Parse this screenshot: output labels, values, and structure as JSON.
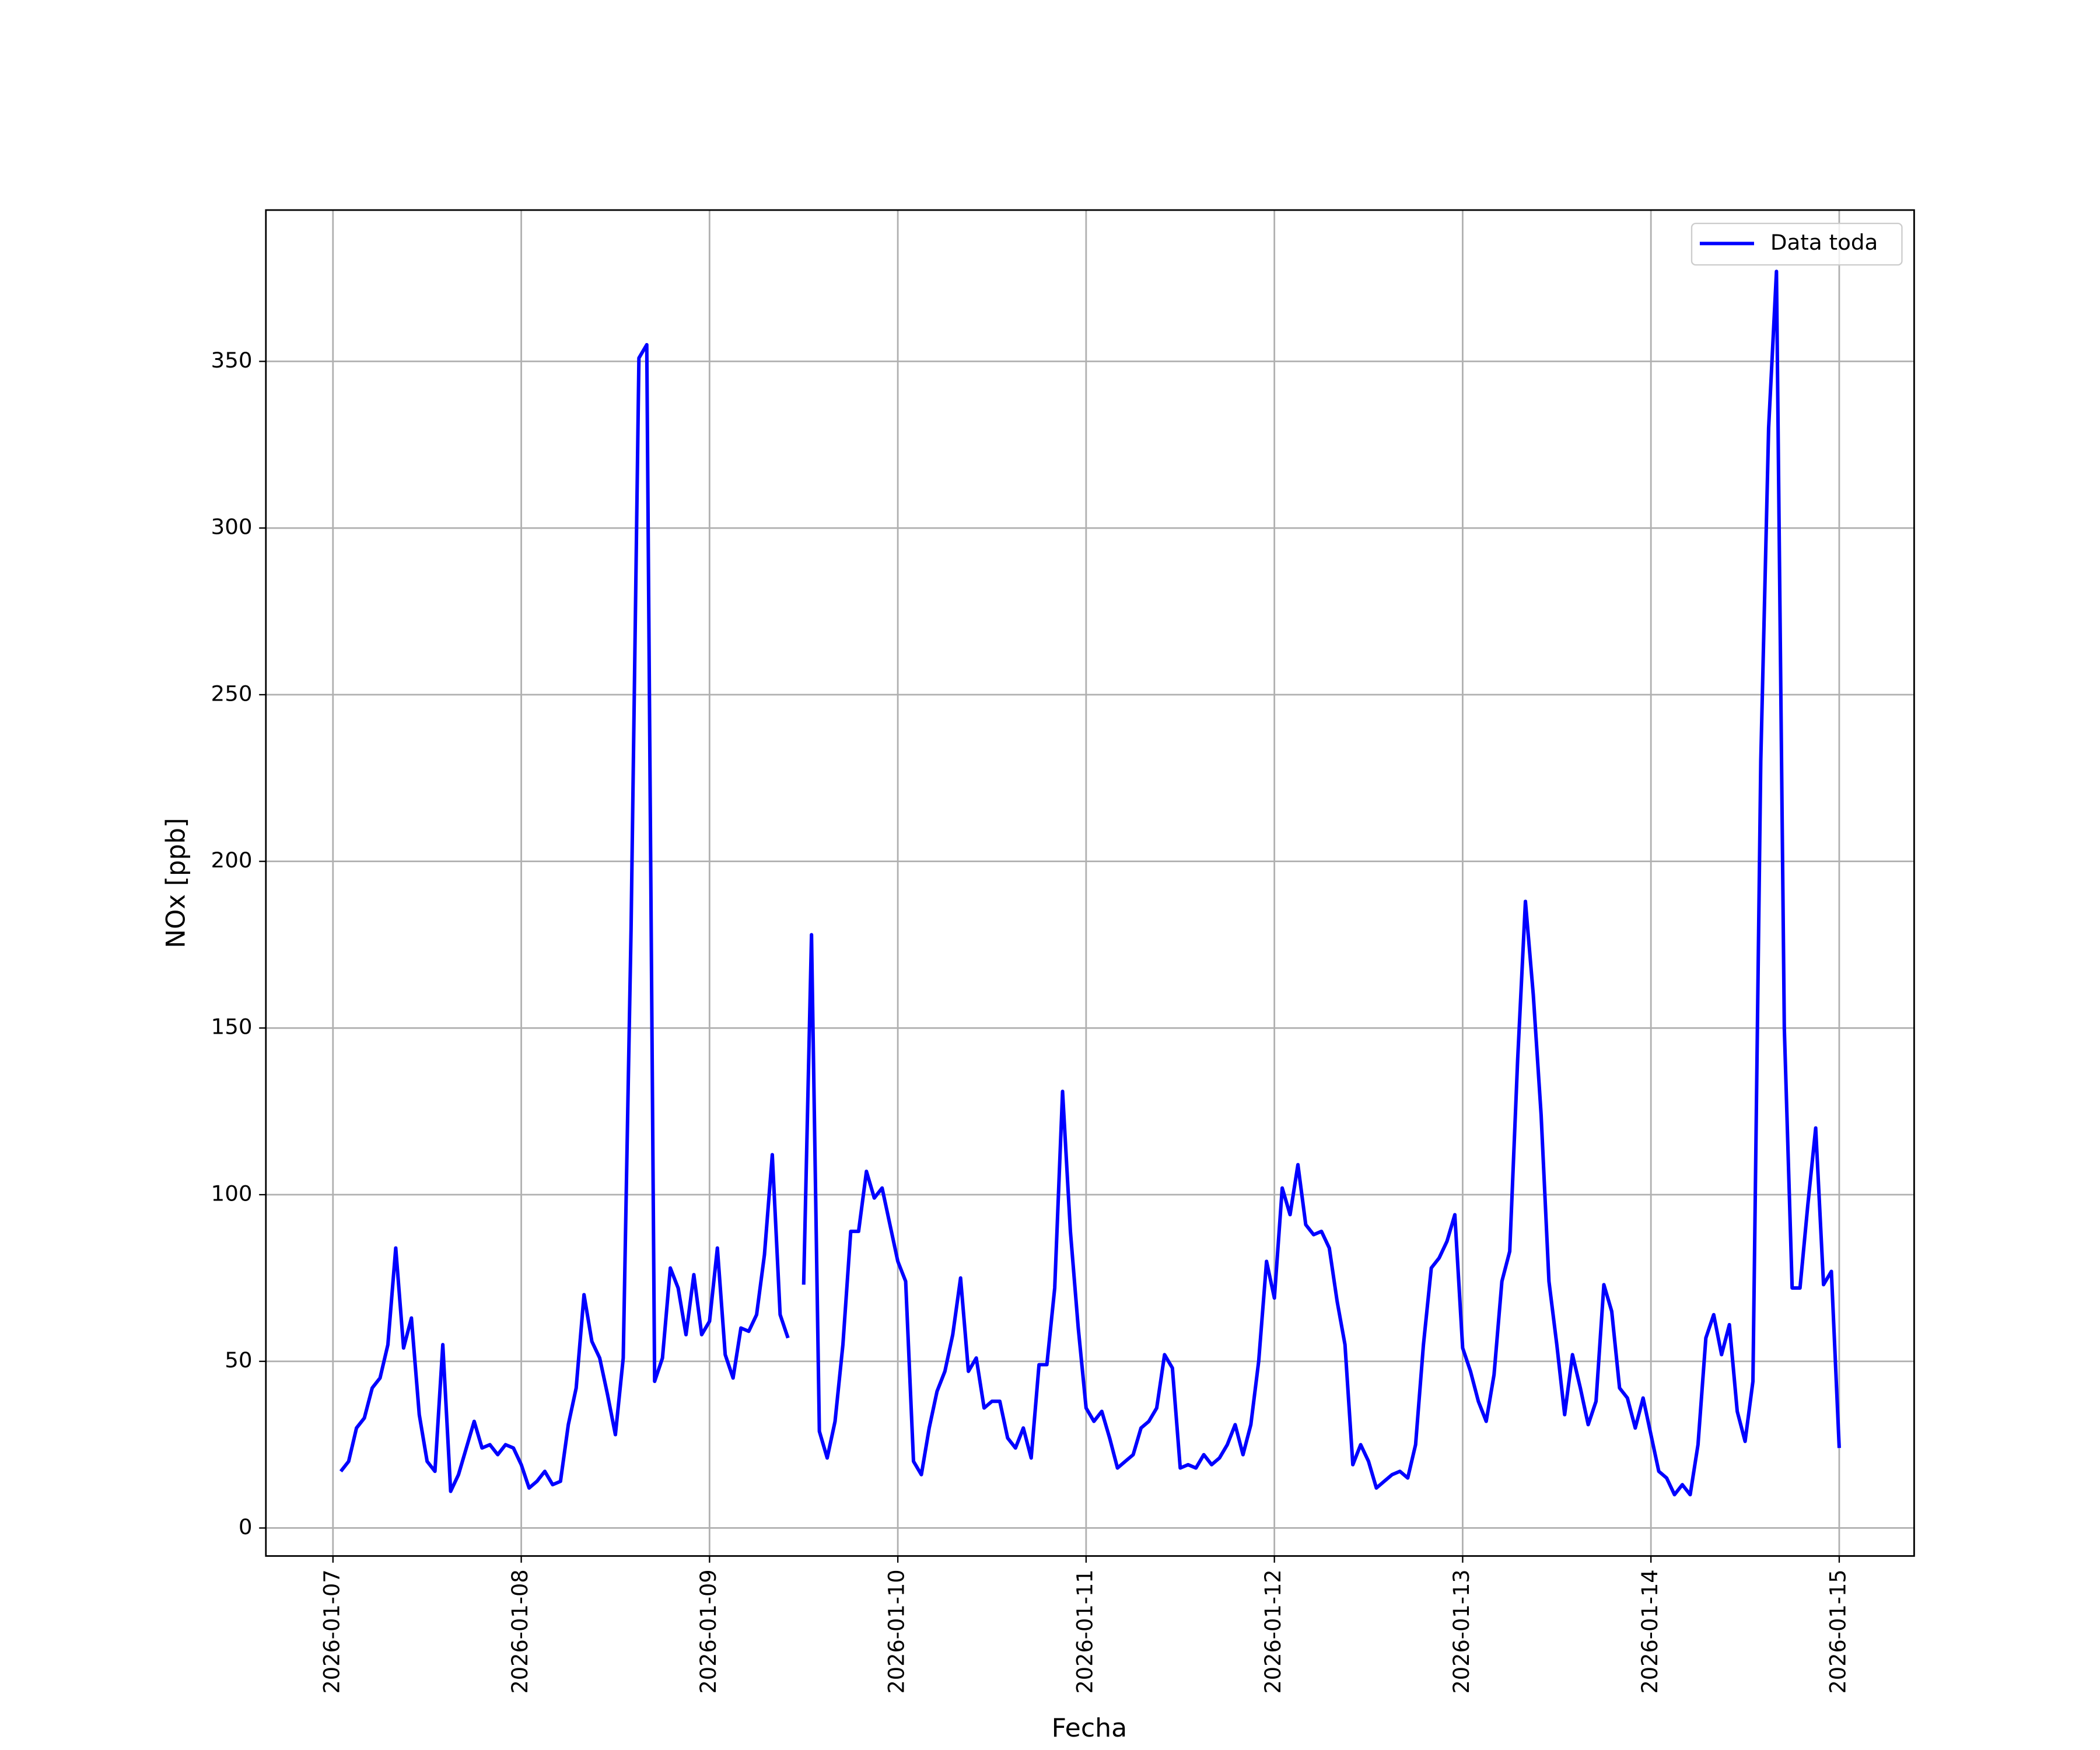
{
  "chart_data": {
    "type": "line",
    "xlabel": "Fecha",
    "ylabel": "NOx [ppb]",
    "x": [
      "2026-01-07 01:00",
      "2026-01-07 02:00",
      "2026-01-07 03:00",
      "2026-01-07 04:00",
      "2026-01-07 05:00",
      "2026-01-07 06:00",
      "2026-01-07 07:00",
      "2026-01-07 08:00",
      "2026-01-07 09:00",
      "2026-01-07 10:00",
      "2026-01-07 11:00",
      "2026-01-07 12:00",
      "2026-01-07 13:00",
      "2026-01-07 14:00",
      "2026-01-07 15:00",
      "2026-01-07 16:00",
      "2026-01-07 17:00",
      "2026-01-07 18:00",
      "2026-01-07 19:00",
      "2026-01-07 20:00",
      "2026-01-07 21:00",
      "2026-01-07 22:00",
      "2026-01-07 23:00",
      "2026-01-08 00:00",
      "2026-01-08 01:00",
      "2026-01-08 02:00",
      "2026-01-08 03:00",
      "2026-01-08 04:00",
      "2026-01-08 05:00",
      "2026-01-08 06:00",
      "2026-01-08 07:00",
      "2026-01-08 08:00",
      "2026-01-08 09:00",
      "2026-01-08 10:00",
      "2026-01-08 11:00",
      "2026-01-08 12:00",
      "2026-01-08 13:00",
      "2026-01-08 14:00",
      "2026-01-08 15:00",
      "2026-01-08 16:00",
      "2026-01-08 17:00",
      "2026-01-08 18:00",
      "2026-01-08 19:00",
      "2026-01-08 20:00",
      "2026-01-08 21:00",
      "2026-01-08 22:00",
      "2026-01-08 23:00",
      "2026-01-09 00:00",
      "2026-01-09 01:00",
      "2026-01-09 02:00",
      "2026-01-09 03:00",
      "2026-01-09 04:00",
      "2026-01-09 05:00",
      "2026-01-09 06:00",
      "2026-01-09 07:00",
      "2026-01-09 08:00",
      "2026-01-09 09:00",
      "2026-01-09 10:00",
      "2026-01-09 11:00",
      "2026-01-09 12:00",
      "2026-01-09 13:00",
      "2026-01-09 14:00",
      "2026-01-09 15:00",
      "2026-01-09 16:00",
      "2026-01-09 17:00",
      "2026-01-09 18:00",
      "2026-01-09 19:00",
      "2026-01-09 20:00",
      "2026-01-09 21:00",
      "2026-01-09 22:00",
      "2026-01-09 23:00",
      "2026-01-10 00:00",
      "2026-01-10 01:00",
      "2026-01-10 02:00",
      "2026-01-10 03:00",
      "2026-01-10 04:00",
      "2026-01-10 05:00",
      "2026-01-10 06:00",
      "2026-01-10 07:00",
      "2026-01-10 08:00",
      "2026-01-10 09:00",
      "2026-01-10 10:00",
      "2026-01-10 11:00",
      "2026-01-10 12:00",
      "2026-01-10 13:00",
      "2026-01-10 14:00",
      "2026-01-10 15:00",
      "2026-01-10 16:00",
      "2026-01-10 17:00",
      "2026-01-10 18:00",
      "2026-01-10 19:00",
      "2026-01-10 20:00",
      "2026-01-10 21:00",
      "2026-01-10 22:00",
      "2026-01-10 23:00",
      "2026-01-11 00:00",
      "2026-01-11 01:00",
      "2026-01-11 02:00",
      "2026-01-11 03:00",
      "2026-01-11 04:00",
      "2026-01-11 05:00",
      "2026-01-11 06:00",
      "2026-01-11 07:00",
      "2026-01-11 08:00",
      "2026-01-11 09:00",
      "2026-01-11 10:00",
      "2026-01-11 11:00",
      "2026-01-11 12:00",
      "2026-01-11 13:00",
      "2026-01-11 14:00",
      "2026-01-11 15:00",
      "2026-01-11 16:00",
      "2026-01-11 17:00",
      "2026-01-11 18:00",
      "2026-01-11 19:00",
      "2026-01-11 20:00",
      "2026-01-11 21:00",
      "2026-01-11 22:00",
      "2026-01-11 23:00",
      "2026-01-12 00:00",
      "2026-01-12 01:00",
      "2026-01-12 02:00",
      "2026-01-12 03:00",
      "2026-01-12 04:00",
      "2026-01-12 05:00",
      "2026-01-12 06:00",
      "2026-01-12 07:00",
      "2026-01-12 08:00",
      "2026-01-12 09:00",
      "2026-01-12 10:00",
      "2026-01-12 11:00",
      "2026-01-12 12:00",
      "2026-01-12 13:00",
      "2026-01-12 14:00",
      "2026-01-12 15:00",
      "2026-01-12 16:00",
      "2026-01-12 17:00",
      "2026-01-12 18:00",
      "2026-01-12 19:00",
      "2026-01-12 20:00",
      "2026-01-12 21:00",
      "2026-01-12 22:00",
      "2026-01-12 23:00",
      "2026-01-13 00:00",
      "2026-01-13 01:00",
      "2026-01-13 02:00",
      "2026-01-13 03:00",
      "2026-01-13 04:00",
      "2026-01-13 05:00",
      "2026-01-13 06:00",
      "2026-01-13 07:00",
      "2026-01-13 08:00",
      "2026-01-13 09:00",
      "2026-01-13 10:00",
      "2026-01-13 11:00",
      "2026-01-13 12:00",
      "2026-01-13 13:00",
      "2026-01-13 14:00",
      "2026-01-13 15:00",
      "2026-01-13 16:00",
      "2026-01-13 17:00",
      "2026-01-13 18:00",
      "2026-01-13 19:00",
      "2026-01-13 20:00",
      "2026-01-13 21:00",
      "2026-01-13 22:00",
      "2026-01-13 23:00",
      "2026-01-14 00:00",
      "2026-01-14 01:00",
      "2026-01-14 02:00",
      "2026-01-14 03:00",
      "2026-01-14 04:00",
      "2026-01-14 05:00",
      "2026-01-14 06:00",
      "2026-01-14 07:00",
      "2026-01-14 08:00",
      "2026-01-14 09:00",
      "2026-01-14 10:00",
      "2026-01-14 11:00",
      "2026-01-14 12:00",
      "2026-01-14 13:00",
      "2026-01-14 14:00",
      "2026-01-14 15:00",
      "2026-01-14 16:00",
      "2026-01-14 17:00",
      "2026-01-14 18:00",
      "2026-01-14 19:00",
      "2026-01-14 20:00",
      "2026-01-14 21:00",
      "2026-01-14 22:00",
      "2026-01-14 23:00",
      "2026-01-15 00:00"
    ],
    "series": [
      {
        "name": "Data toda",
        "color": "#0000ff",
        "values": [
          17,
          20,
          30,
          33,
          42,
          45,
          55,
          84,
          54,
          63,
          34,
          20,
          17,
          55,
          11,
          16,
          24,
          32,
          24,
          25,
          22,
          25,
          24,
          19,
          12,
          14,
          17,
          13,
          14,
          31,
          42,
          70,
          56,
          51,
          40,
          28,
          51,
          180,
          351,
          355,
          44,
          51,
          78,
          72,
          58,
          76,
          58,
          62,
          84,
          52,
          45,
          60,
          59,
          64,
          82,
          112,
          64,
          57,
          null,
          73,
          178,
          29,
          21,
          32,
          55,
          89,
          89,
          107,
          99,
          102,
          91,
          80,
          74,
          20,
          16,
          30,
          41,
          47,
          58,
          75,
          47,
          51,
          36,
          38,
          38,
          27,
          24,
          30,
          21,
          49,
          49,
          72,
          131,
          89,
          60,
          36,
          32,
          35,
          27,
          18,
          20,
          22,
          30,
          32,
          36,
          52,
          48,
          18,
          19,
          18,
          22,
          19,
          21,
          25,
          31,
          22,
          31,
          50,
          80,
          69,
          102,
          94,
          109,
          91,
          88,
          89,
          84,
          68,
          55,
          19,
          25,
          20,
          12,
          14,
          16,
          17,
          15,
          25,
          55,
          78,
          81,
          86,
          94,
          54,
          47,
          38,
          32,
          46,
          74,
          83,
          140,
          188,
          160,
          124,
          74,
          55,
          34,
          52,
          42,
          31,
          38,
          73,
          65,
          42,
          39,
          30,
          39,
          28,
          17,
          15,
          10,
          13,
          10,
          25,
          57,
          64,
          52,
          61,
          35,
          26,
          44,
          230,
          330,
          377,
          150,
          72,
          72,
          97,
          120,
          73,
          77,
          24
        ]
      }
    ],
    "xlim": [
      "2026-01-06 15:27",
      "2026-01-15 09:33"
    ],
    "xticks": [
      "2026-01-07",
      "2026-01-08",
      "2026-01-09",
      "2026-01-10",
      "2026-01-11",
      "2026-01-12",
      "2026-01-13",
      "2026-01-14",
      "2026-01-15"
    ],
    "ylim": [
      -8.4,
      395.4
    ],
    "yticks": [
      0,
      50,
      100,
      150,
      200,
      250,
      300,
      350
    ],
    "grid": true,
    "legend": "upper right"
  }
}
